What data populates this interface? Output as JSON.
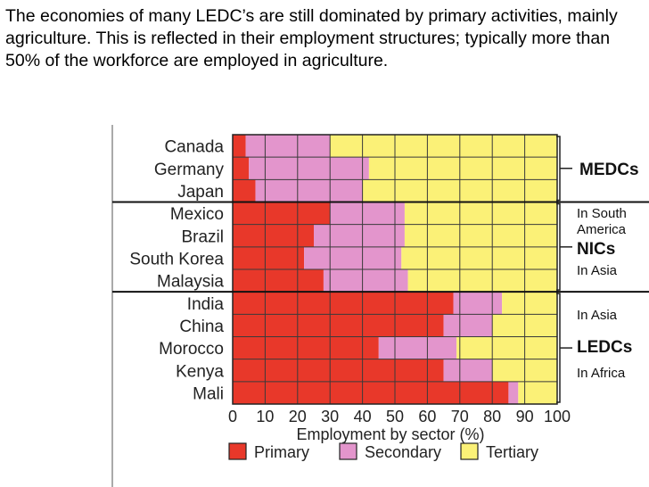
{
  "intro_text": "The economies of many LEDC’s are still dominated by primary activities, mainly agriculture. This is reflected in their employment structures; typically more than 50% of the workforce are employed in agriculture.",
  "colors": {
    "primary": "#e8382a",
    "secondary": "#e395cc",
    "tertiary": "#fbf177",
    "grid": "#3a3a3a",
    "frame": "#000000"
  },
  "chart_data": {
    "type": "bar",
    "stacked": true,
    "orientation": "horizontal",
    "categories": [
      "Canada",
      "Germany",
      "Japan",
      "Mexico",
      "Brazil",
      "South Korea",
      "Malaysia",
      "India",
      "China",
      "Morocco",
      "Kenya",
      "Mali"
    ],
    "series": [
      {
        "name": "Primary",
        "values": [
          4,
          5,
          7,
          30,
          25,
          22,
          28,
          68,
          65,
          45,
          65,
          85
        ]
      },
      {
        "name": "Secondary",
        "values": [
          26,
          37,
          33,
          23,
          28,
          30,
          26,
          15,
          15,
          24,
          15,
          3
        ]
      },
      {
        "name": "Tertiary",
        "values": [
          70,
          58,
          60,
          47,
          47,
          48,
          46,
          17,
          20,
          31,
          20,
          12
        ]
      }
    ],
    "xlabel": "Employment by sector (%)",
    "xticks": [
      "0",
      "10",
      "20",
      "30",
      "40",
      "50",
      "60",
      "70",
      "80",
      "90",
      "100"
    ],
    "xlim": [
      0,
      100
    ],
    "grid": true,
    "legend_position": "bottom",
    "groups": [
      {
        "rows": [
          0,
          2
        ],
        "label": "MEDCs",
        "notes": []
      },
      {
        "rows": [
          3,
          6
        ],
        "label": "NICs",
        "notes": [
          "In South America",
          "In Asia"
        ]
      },
      {
        "rows": [
          7,
          11
        ],
        "label": "LEDCs",
        "notes": [
          "In Asia",
          "In Africa"
        ]
      }
    ]
  }
}
